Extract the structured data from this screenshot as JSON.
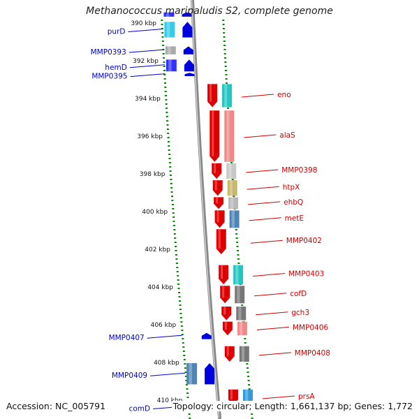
{
  "title": "Methanococcus maripaludis S2, complete genome",
  "footer": {
    "accession": "Accession: NC_005791",
    "summary": "Topology: circular; Length: 1,661,137 bp; Genes: 1,772"
  },
  "colors": {
    "forward_gene": "#dd0000",
    "reverse_gene": "#0000dd",
    "forward_label": "#cc0000",
    "reverse_label": "#0000cc",
    "backbone": "#888888",
    "ticks": "#008800"
  },
  "chart_data": {
    "type": "genome-map",
    "unit": "kbp",
    "visible_range_kbp": [
      389.5,
      410.6
    ],
    "tick_labels": [
      {
        "kbp": 390,
        "label": "390 kbp"
      },
      {
        "kbp": 392,
        "label": "392 kbp"
      },
      {
        "kbp": 394,
        "label": "394 kbp"
      },
      {
        "kbp": 396,
        "label": "396 kbp"
      },
      {
        "kbp": 398,
        "label": "398 kbp"
      },
      {
        "kbp": 400,
        "label": "400 kbp"
      },
      {
        "kbp": 402,
        "label": "402 kbp"
      },
      {
        "kbp": 404,
        "label": "404 kbp"
      },
      {
        "kbp": 406,
        "label": "406 kbp"
      },
      {
        "kbp": 408,
        "label": "408 kbp"
      },
      {
        "kbp": 410,
        "label": "410 kbp"
      }
    ],
    "genes": [
      {
        "name": "",
        "strand": "-",
        "start_kbp": 389.4,
        "end_kbp": 389.7,
        "category": "#3333ff"
      },
      {
        "name": "purD",
        "strand": "-",
        "start_kbp": 389.9,
        "end_kbp": 390.8,
        "category": "#33ccee"
      },
      {
        "name": "MMP0393",
        "strand": "-",
        "start_kbp": 391.2,
        "end_kbp": 391.7,
        "category": "#aaaaaa"
      },
      {
        "name": "hemD",
        "strand": "-",
        "start_kbp": 391.9,
        "end_kbp": 392.6,
        "category": "#3333ff"
      },
      {
        "name": "MMP0395",
        "strand": "-",
        "start_kbp": 392.6,
        "end_kbp": 392.85,
        "category": ""
      },
      {
        "name": "eno",
        "strand": "+",
        "start_kbp": 393.2,
        "end_kbp": 394.5,
        "category": "#22c6c0"
      },
      {
        "name": "alaS",
        "strand": "+",
        "start_kbp": 394.6,
        "end_kbp": 397.4,
        "category": "#f08888"
      },
      {
        "name": "MMP0398",
        "strand": "+",
        "start_kbp": 397.4,
        "end_kbp": 398.3,
        "category": "#c8c8c8"
      },
      {
        "name": "htpX",
        "strand": "+",
        "start_kbp": 398.3,
        "end_kbp": 399.2,
        "category": "#c8b86a"
      },
      {
        "name": "ehbQ",
        "strand": "+",
        "start_kbp": 399.2,
        "end_kbp": 399.9,
        "category": "#b8b8b8"
      },
      {
        "name": "metE",
        "strand": "+",
        "start_kbp": 399.9,
        "end_kbp": 400.9,
        "category": "#4e84b8"
      },
      {
        "name": "MMP0402",
        "strand": "+",
        "start_kbp": 400.9,
        "end_kbp": 402.3,
        "category": ""
      },
      {
        "name": "MMP0403",
        "strand": "+",
        "start_kbp": 402.8,
        "end_kbp": 403.9,
        "category": "#22c6c0"
      },
      {
        "name": "cofD",
        "strand": "+",
        "start_kbp": 403.9,
        "end_kbp": 404.9,
        "category": "#777777"
      },
      {
        "name": "gch3",
        "strand": "+",
        "start_kbp": 405.0,
        "end_kbp": 405.8,
        "category": "#777777"
      },
      {
        "name": "MMP0406",
        "strand": "+",
        "start_kbp": 405.8,
        "end_kbp": 406.6,
        "category": "#f08888"
      },
      {
        "name": "MMP0407",
        "strand": "-",
        "start_kbp": 406.4,
        "end_kbp": 406.8,
        "category": ""
      },
      {
        "name": "MMP0408",
        "strand": "+",
        "start_kbp": 407.1,
        "end_kbp": 408.0,
        "category": "#777777"
      },
      {
        "name": "MMP0409",
        "strand": "-",
        "start_kbp": 408.0,
        "end_kbp": 409.2,
        "category": "#4e84b8"
      },
      {
        "name": "prsA",
        "strand": "+",
        "start_kbp": 409.4,
        "end_kbp": 410.3,
        "category": "#3399dd"
      },
      {
        "name": "comD",
        "strand": "-",
        "start_kbp": 410.1,
        "end_kbp": 410.6,
        "category": ""
      }
    ]
  }
}
